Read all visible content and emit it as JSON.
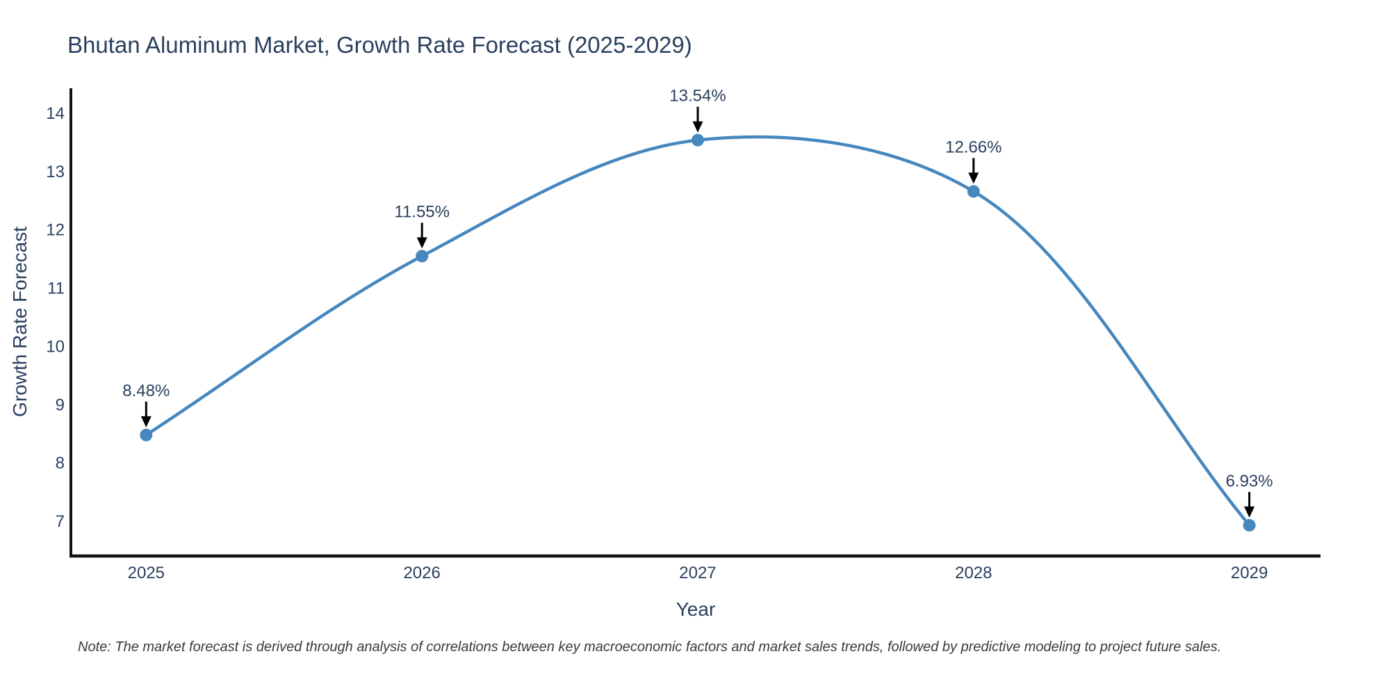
{
  "chart_data": {
    "type": "line",
    "line_shape": "spline",
    "title": "Bhutan Aluminum Market, Growth Rate Forecast (2025-2029)",
    "xlabel": "Year",
    "ylabel": "Growth Rate Forecast",
    "note": "Note: The market forecast is derived through analysis of correlations between key macroeconomic factors and market sales trends, followed by predictive modeling to project future sales.",
    "x": [
      2025,
      2026,
      2027,
      2028,
      2029
    ],
    "y": [
      8.48,
      11.55,
      13.54,
      12.66,
      6.93
    ],
    "point_labels": [
      "8.48%",
      "11.55%",
      "13.54%",
      "12.66%",
      "6.93%"
    ],
    "x_tick_labels": [
      "2025",
      "2026",
      "2027",
      "2028",
      "2029"
    ],
    "y_ticks": [
      7,
      8,
      9,
      10,
      11,
      12,
      13,
      14
    ],
    "xlim": [
      2024.727,
      2029.258
    ],
    "ylim": [
      6.403,
      14.43
    ],
    "grid": false,
    "legend_position": "none",
    "line_color": "#4687bd",
    "marker_color": "#4687bd",
    "axis_color": "#111111",
    "text_color": "#2a3f5f",
    "annotation_arrow_color": "#000000"
  }
}
